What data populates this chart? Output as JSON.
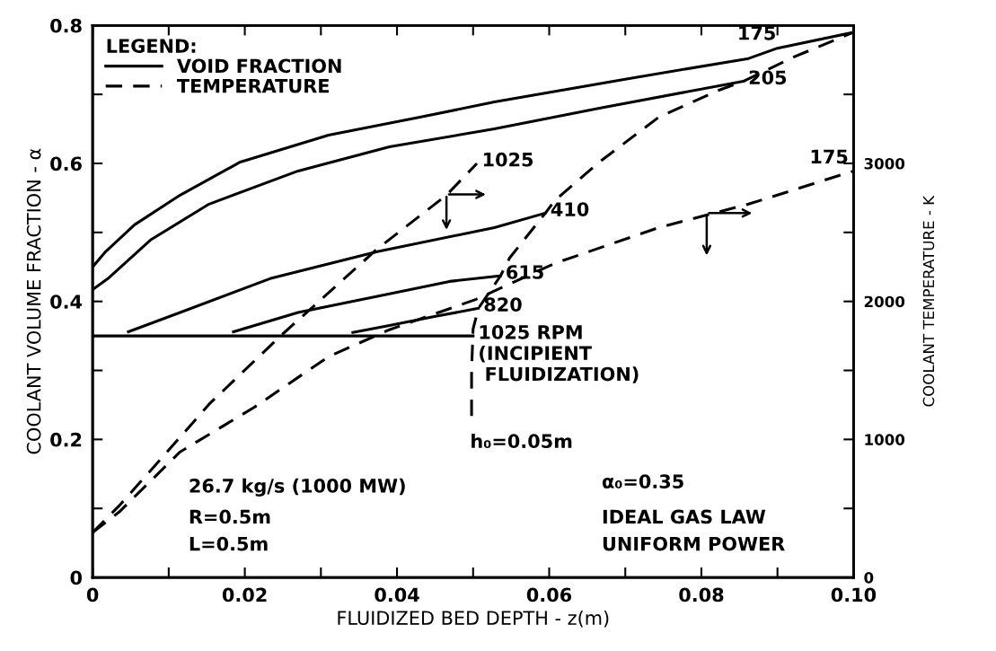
{
  "chart_data": {
    "type": "line",
    "xlabel": "FLUIDIZED BED DEPTH - z(m)",
    "ylabel": "COOLANT VOLUME FRACTION - α",
    "y2label": "COOLANT TEMPERATURE - K",
    "legend_title": "LEGEND:",
    "legend": "top left",
    "grid": false,
    "marker": "none",
    "xlim": [
      0,
      0.1
    ],
    "xticks": [
      {
        "value": 0,
        "label": "0"
      },
      {
        "value": 0.01,
        "label": null
      },
      0.02,
      {
        "value": 0.03,
        "label": null
      },
      0.04,
      {
        "value": 0.05,
        "label": null
      },
      0.06,
      {
        "value": 0.07,
        "label": null
      },
      0.08,
      {
        "value": 0.09,
        "label": null
      },
      {
        "value": 0.1,
        "label": "0.10"
      }
    ],
    "ylim": [
      0,
      0.8
    ],
    "yticks": [
      {
        "value": 0,
        "label": "0"
      },
      {
        "value": 0.1,
        "label": null
      },
      0.2,
      {
        "value": 0.3,
        "label": null
      },
      0.4,
      {
        "value": 0.5,
        "label": null
      },
      0.6,
      {
        "value": 0.7,
        "label": null
      },
      0.8
    ],
    "y2lim": [
      0,
      4000
    ],
    "y2ticks": [
      0,
      {
        "value": 500,
        "label": null
      },
      1000,
      {
        "value": 1500,
        "label": null
      },
      2000,
      {
        "value": 2500,
        "label": null
      },
      3000,
      {
        "value": 3500,
        "label": null
      }
    ],
    "series": [
      {
        "name": "VOID FRACTION",
        "axis": "y",
        "line_style": "solid",
        "color": "#000000",
        "x": [
          0,
          0.0017,
          0.0055,
          0.0115,
          0.0194,
          0.031,
          0.043,
          0.0528,
          0.0705,
          0.0862,
          0.09,
          0.1
        ],
        "values": [
          0.45,
          0.472,
          0.511,
          0.554,
          0.602,
          0.641,
          0.667,
          0.689,
          0.723,
          0.752,
          0.767,
          0.79
        ]
      },
      {
        "axis": "y",
        "line_style": "solid",
        "color": "#000000",
        "x": [
          0,
          0.002,
          0.0076,
          0.0153,
          0.027,
          0.039,
          0.0528,
          0.0666,
          0.0855
        ],
        "values": [
          0.417,
          0.433,
          0.489,
          0.541,
          0.589,
          0.624,
          0.65,
          0.68,
          0.719
        ]
      },
      {
        "axis": "y",
        "line_style": "solid",
        "color": "#000000",
        "x": [
          0.0047,
          0.0115,
          0.0233,
          0.0374,
          0.0528,
          0.0595
        ],
        "values": [
          0.356,
          0.384,
          0.433,
          0.472,
          0.507,
          0.528
        ]
      },
      {
        "axis": "y",
        "line_style": "solid",
        "color": "#000000",
        "x": [
          0.0185,
          0.027,
          0.039,
          0.0469,
          0.0536
        ],
        "values": [
          0.356,
          0.384,
          0.411,
          0.429,
          0.437
        ]
      },
      {
        "axis": "y",
        "line_style": "solid",
        "color": "#000000",
        "x": [
          0.0342,
          0.039,
          0.0449,
          0.0507
        ],
        "values": [
          0.355,
          0.365,
          0.378,
          0.39
        ]
      },
      {
        "axis": "y",
        "line_style": "solid",
        "color": "#000000",
        "x": [
          0,
          0.05
        ],
        "values": [
          0.35,
          0.35
        ]
      },
      {
        "name": "TEMPERATURE",
        "axis": "y2",
        "line_style": "dashed",
        "color": "#000000",
        "x": [
          0,
          0.0035,
          0.0094,
          0.0153,
          0.0248,
          0.0374,
          0.0465,
          0.0505
        ],
        "values": [
          325,
          520,
          885,
          1255,
          1755,
          2380,
          2770,
          3000
        ]
      },
      {
        "axis": "y2",
        "line_style": "dashed",
        "color": "#000000",
        "x": [
          0,
          0.0035,
          0.0115,
          0.0213,
          0.031,
          0.039,
          0.0504,
          0.0607,
          0.0744,
          0.0862,
          0.1
        ],
        "values": [
          325,
          475,
          910,
          1235,
          1600,
          1795,
          2015,
          2275,
          2535,
          2705,
          2945
        ]
      },
      {
        "axis": "y2",
        "line_style": "dashed",
        "color": "#000000",
        "x": [
          0.0498,
          0.0498,
          0.05,
          0.0507,
          0.0536,
          0.0548,
          0.0595,
          0.0607,
          0.0666,
          0.0744,
          0.0823,
          0.0855,
          0.0921,
          0.1
        ],
        "values": [
          1170,
          1500,
          1800,
          1950,
          2185,
          2315,
          2640,
          2730,
          3010,
          3335,
          3530,
          3595,
          3770,
          3950
        ]
      }
    ],
    "annotations": [
      {
        "text": "175",
        "x": 0.0905,
        "y": 0.768
      },
      {
        "text": "205",
        "x": 0.0855,
        "y": 0.719
      },
      {
        "text": "1025",
        "x": 0.0505,
        "y": 0.6
      },
      {
        "text": "410",
        "x": 0.0595,
        "y": 0.528
      },
      {
        "text": "175",
        "x": 0.1,
        "y": 0.589
      },
      {
        "text": "615",
        "x": 0.0536,
        "y": 0.437
      },
      {
        "text": "820",
        "x": 0.0507,
        "y": 0.39
      },
      {
        "text": "1025 RPM\n(INCIPIENT\n FLUIDIZATION)",
        "x": 0.05,
        "y": 0.35
      },
      "26.7 kg/s (1000 MW)",
      "R=0.5m",
      "L=0.5m",
      "h₀=0.05m",
      "α₀=0.35",
      "IDEAL GAS LAW",
      "UNIFORM POWER"
    ]
  }
}
